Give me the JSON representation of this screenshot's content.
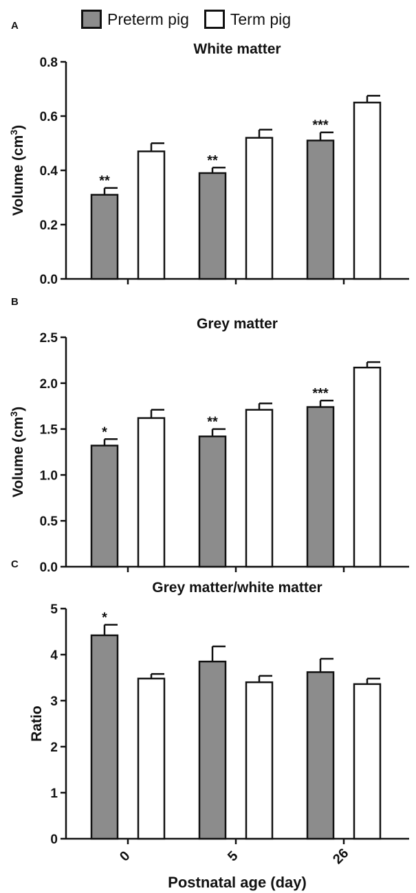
{
  "legend": {
    "items": [
      {
        "label": "Preterm pig",
        "color": "#8c8c8c"
      },
      {
        "label": "Term pig",
        "color": "#ffffff"
      }
    ]
  },
  "x_axis": {
    "label": "Postnatal age (day)",
    "ticks": [
      "0",
      "5",
      "26"
    ]
  },
  "chart_data": [
    {
      "type": "bar",
      "panel_letter": "A",
      "title": "White matter",
      "ylabel": "Volume (cm",
      "ylabel_sup": "3",
      "ylabel_close": ")",
      "ylim": [
        0,
        0.8
      ],
      "yticks": [
        "0.0",
        "0.2",
        "0.4",
        "0.6",
        "0.8"
      ],
      "categories": [
        "0",
        "5",
        "26"
      ],
      "series": [
        {
          "name": "Preterm pig",
          "color": "#8c8c8c",
          "values": [
            0.31,
            0.39,
            0.51
          ],
          "errors": [
            0.025,
            0.02,
            0.03
          ]
        },
        {
          "name": "Term pig",
          "color": "#ffffff",
          "values": [
            0.47,
            0.52,
            0.65
          ],
          "errors": [
            0.03,
            0.03,
            0.025
          ]
        }
      ],
      "annotations": [
        "**",
        "**",
        "***"
      ]
    },
    {
      "type": "bar",
      "panel_letter": "B",
      "title": "Grey matter",
      "ylabel": "Volume (cm",
      "ylabel_sup": "3",
      "ylabel_close": ")",
      "ylim": [
        0,
        2.5
      ],
      "yticks": [
        "0.0",
        "0.5",
        "1.0",
        "1.5",
        "2.0",
        "2.5"
      ],
      "categories": [
        "0",
        "5",
        "26"
      ],
      "series": [
        {
          "name": "Preterm pig",
          "color": "#8c8c8c",
          "values": [
            1.32,
            1.42,
            1.74
          ],
          "errors": [
            0.07,
            0.08,
            0.07
          ]
        },
        {
          "name": "Term pig",
          "color": "#ffffff",
          "values": [
            1.62,
            1.71,
            2.17
          ],
          "errors": [
            0.09,
            0.07,
            0.06
          ]
        }
      ],
      "annotations": [
        "*",
        "**",
        "***"
      ]
    },
    {
      "type": "bar",
      "panel_letter": "C",
      "title": "Grey matter/white matter",
      "ylabel": "Ratio",
      "ylabel_sup": "",
      "ylabel_close": "",
      "ylim": [
        0,
        5
      ],
      "yticks": [
        "0",
        "1",
        "2",
        "3",
        "4",
        "5"
      ],
      "categories": [
        "0",
        "5",
        "26"
      ],
      "series": [
        {
          "name": "Preterm pig",
          "color": "#8c8c8c",
          "values": [
            4.42,
            3.85,
            3.62
          ],
          "errors": [
            0.23,
            0.33,
            0.29
          ]
        },
        {
          "name": "Term pig",
          "color": "#ffffff",
          "values": [
            3.48,
            3.4,
            3.36
          ],
          "errors": [
            0.1,
            0.14,
            0.12
          ]
        }
      ],
      "annotations": [
        "*",
        "",
        ""
      ]
    }
  ]
}
